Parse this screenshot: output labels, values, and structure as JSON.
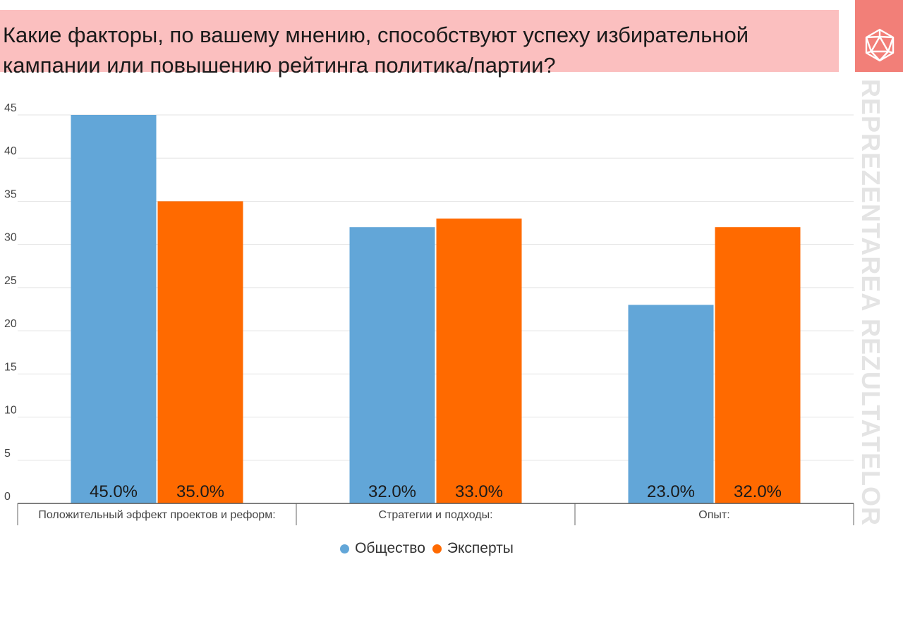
{
  "header": {
    "title": "Какие факторы, по вашему мнению, способствуют успеху избирательной кампании или повышению рейтинга политика/партии?",
    "brand_text": "REPREZENTAREA REZULTATELOR",
    "brand_icon": "polyhedron-icon",
    "brand_color": "#f27f78",
    "title_bg": "#fbbfbf"
  },
  "chart_data": {
    "type": "bar",
    "title": "Какие факторы, по вашему мнению, способствуют успеху избирательной кампании или повышению рейтинга политика/партии?",
    "categories": [
      "Положительный эффект проектов и реформ:",
      "Стратегии и подходы:",
      "Опыт:"
    ],
    "series": [
      {
        "name": "Общество",
        "values": [
          45,
          32,
          23
        ],
        "labels": [
          "45.0%",
          "32.0%",
          "23.0%"
        ],
        "color": "#62a6d8"
      },
      {
        "name": "Эксперты",
        "values": [
          35,
          33,
          32
        ],
        "labels": [
          "35.0%",
          "33.0%",
          "32.0%"
        ],
        "color": "#ff6a00"
      }
    ],
    "ylim": [
      0,
      45
    ],
    "yticks": [
      "0",
      "5",
      "10",
      "15",
      "20",
      "25",
      "30",
      "35",
      "40",
      "45"
    ],
    "grid": true,
    "legend": "bottom-center"
  }
}
